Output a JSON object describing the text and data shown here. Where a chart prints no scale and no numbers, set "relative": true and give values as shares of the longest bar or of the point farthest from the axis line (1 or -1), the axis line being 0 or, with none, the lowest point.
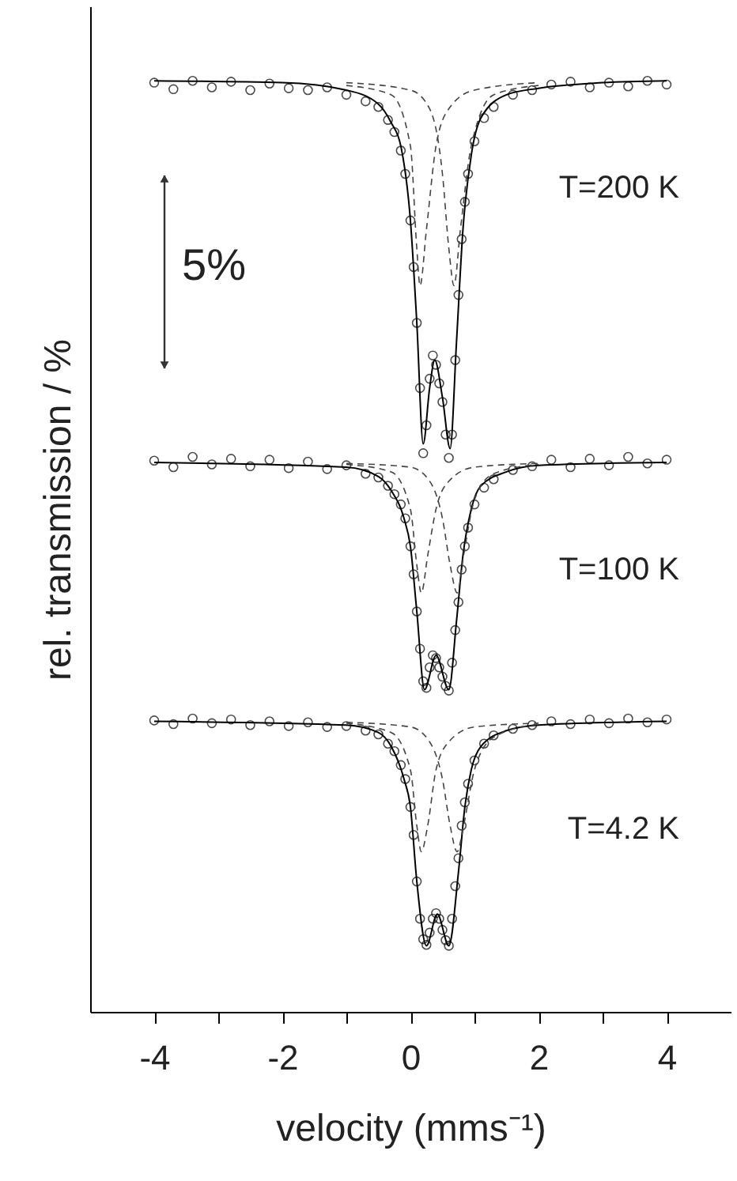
{
  "chart_data": {
    "type": "scatter",
    "relative": true,
    "xlabel": "velocity (mms⁻¹)",
    "ylabel": "rel. transmission / %",
    "xlim": [
      -5,
      5
    ],
    "xticks": [
      -4,
      {
        "value": -3,
        "label": null
      },
      -2,
      {
        "value": -1,
        "label": null
      },
      0,
      {
        "value": 1,
        "label": null
      },
      2,
      {
        "value": 3,
        "label": null
      },
      4
    ],
    "tick_labels": "x",
    "grid": false,
    "annotations": [
      "5%"
    ],
    "series": [
      {
        "marker": "circle",
        "color": "#000000",
        "x": [
          -4,
          -3.7,
          -3.4,
          -3.1,
          -2.8,
          -2.5,
          -2.2,
          -1.9,
          -1.6,
          -1.3,
          -1.0,
          -0.7,
          -0.5,
          -0.35,
          -0.25,
          -0.15,
          -0.08,
          0,
          0.05,
          0.1,
          0.15,
          0.2,
          0.25,
          0.3,
          0.35,
          0.4,
          0.45,
          0.5,
          0.55,
          0.6,
          0.65,
          0.7,
          0.75,
          0.8,
          0.85,
          0.9,
          1.0,
          1.15,
          1.3,
          1.6,
          1.9,
          2.2,
          2.5,
          2.8,
          3.1,
          3.4,
          3.7,
          4
        ],
        "values": [
          0.998,
          0.991,
          1.0,
          0.993,
          0.999,
          0.99,
          0.997,
          0.992,
          0.99,
          0.993,
          0.985,
          0.978,
          0.972,
          0.958,
          0.945,
          0.925,
          0.9,
          0.85,
          0.8,
          0.74,
          0.67,
          0.6,
          0.63,
          0.68,
          0.705,
          0.695,
          0.675,
          0.655,
          0.62,
          0.595,
          0.62,
          0.7,
          0.77,
          0.83,
          0.87,
          0.9,
          0.935,
          0.96,
          0.972,
          0.985,
          0.99,
          0.996,
          0.999,
          0.993,
          0.998,
          0.994,
          1.0,
          0.996
        ]
      },
      {
        "type": "line",
        "name": "T=200 K",
        "marker": "none",
        "line_style": "solid",
        "color": "#000000",
        "x": [
          -4,
          -2,
          -1,
          -0.5,
          -0.3,
          -0.15,
          0,
          0.1,
          0.2,
          0.3,
          0.38,
          0.5,
          0.62,
          0.72,
          0.82,
          0.95,
          1.1,
          1.5,
          2,
          3,
          4
        ],
        "values": [
          1.0,
          0.998,
          0.99,
          0.975,
          0.955,
          0.93,
          0.85,
          0.74,
          0.61,
          0.67,
          0.7,
          0.66,
          0.605,
          0.72,
          0.84,
          0.92,
          0.96,
          0.985,
          0.992,
          0.998,
          1.0
        ]
      },
      {
        "type": "line",
        "marker": "none",
        "line_style": "dashed",
        "color": "#444444",
        "x": [
          -1,
          -0.3,
          0,
          0.1,
          0.15,
          0.25,
          0.4,
          0.6,
          1.0,
          2
        ],
        "values": [
          0.995,
          0.985,
          0.93,
          0.82,
          0.78,
          0.84,
          0.93,
          0.97,
          0.99,
          0.998
        ]
      },
      {
        "type": "line",
        "marker": "none",
        "line_style": "dashed",
        "color": "#444444",
        "x": [
          -1,
          0,
          0.3,
          0.5,
          0.6,
          0.68,
          0.78,
          0.95,
          1.3,
          2
        ],
        "values": [
          0.998,
          0.99,
          0.97,
          0.9,
          0.82,
          0.78,
          0.84,
          0.93,
          0.985,
          0.995
        ]
      },
      {
        "marker": "circle",
        "color": "#000000",
        "x": [
          -4,
          -3.7,
          -3.4,
          -3.1,
          -2.8,
          -2.5,
          -2.2,
          -1.9,
          -1.6,
          -1.3,
          -1.0,
          -0.7,
          -0.5,
          -0.35,
          -0.25,
          -0.15,
          -0.08,
          0,
          0.05,
          0.1,
          0.15,
          0.2,
          0.25,
          0.3,
          0.35,
          0.4,
          0.45,
          0.5,
          0.55,
          0.6,
          0.65,
          0.7,
          0.75,
          0.8,
          0.85,
          0.9,
          1.0,
          1.15,
          1.3,
          1.6,
          1.9,
          2.2,
          2.5,
          2.8,
          3.1,
          3.4,
          3.7,
          4
        ],
        "values": [
          0.592,
          0.585,
          0.596,
          0.588,
          0.594,
          0.586,
          0.593,
          0.584,
          0.591,
          0.583,
          0.587,
          0.578,
          0.574,
          0.565,
          0.556,
          0.545,
          0.53,
          0.5,
          0.47,
          0.43,
          0.39,
          0.355,
          0.348,
          0.37,
          0.383,
          0.38,
          0.37,
          0.36,
          0.35,
          0.345,
          0.375,
          0.41,
          0.44,
          0.475,
          0.5,
          0.52,
          0.545,
          0.563,
          0.572,
          0.582,
          0.586,
          0.593,
          0.585,
          0.594,
          0.587,
          0.596,
          0.589,
          0.593
        ]
      },
      {
        "type": "line",
        "name": "T=100 K",
        "marker": "none",
        "line_style": "solid",
        "color": "#000000",
        "x": [
          -4,
          -1,
          -0.5,
          -0.3,
          -0.1,
          0,
          0.1,
          0.22,
          0.4,
          0.6,
          0.72,
          0.82,
          0.95,
          1.1,
          1.5,
          2,
          4
        ],
        "values": [
          0.59,
          0.585,
          0.575,
          0.56,
          0.53,
          0.5,
          0.43,
          0.346,
          0.383,
          0.346,
          0.42,
          0.49,
          0.54,
          0.565,
          0.58,
          0.587,
          0.59
        ]
      },
      {
        "type": "line",
        "marker": "none",
        "line_style": "dashed",
        "color": "#444444",
        "x": [
          -1,
          -0.3,
          0,
          0.1,
          0.17,
          0.27,
          0.4,
          0.6,
          1.0,
          2
        ],
        "values": [
          0.588,
          0.58,
          0.54,
          0.48,
          0.45,
          0.49,
          0.54,
          0.57,
          0.585,
          0.589
        ]
      },
      {
        "type": "line",
        "marker": "none",
        "line_style": "dashed",
        "color": "#444444",
        "x": [
          -1,
          0,
          0.3,
          0.5,
          0.62,
          0.73,
          0.83,
          1.0,
          1.3,
          2
        ],
        "values": [
          0.589,
          0.585,
          0.57,
          0.53,
          0.48,
          0.45,
          0.49,
          0.55,
          0.578,
          0.588
        ]
      },
      {
        "marker": "circle",
        "color": "#000000",
        "x": [
          -4,
          -3.7,
          -3.4,
          -3.1,
          -2.8,
          -2.5,
          -2.2,
          -1.9,
          -1.6,
          -1.3,
          -1.0,
          -0.7,
          -0.5,
          -0.35,
          -0.25,
          -0.15,
          -0.08,
          0,
          0.05,
          0.1,
          0.15,
          0.2,
          0.25,
          0.3,
          0.35,
          0.4,
          0.45,
          0.5,
          0.55,
          0.6,
          0.65,
          0.7,
          0.75,
          0.8,
          0.85,
          0.9,
          1.0,
          1.15,
          1.3,
          1.6,
          1.9,
          2.2,
          2.5,
          2.8,
          3.1,
          3.4,
          3.7,
          4
        ],
        "values": [
          0.313,
          0.309,
          0.315,
          0.31,
          0.314,
          0.308,
          0.312,
          0.307,
          0.311,
          0.306,
          0.307,
          0.302,
          0.298,
          0.288,
          0.28,
          0.265,
          0.25,
          0.22,
          0.19,
          0.14,
          0.1,
          0.078,
          0.072,
          0.085,
          0.1,
          0.106,
          0.1,
          0.088,
          0.077,
          0.071,
          0.1,
          0.135,
          0.165,
          0.2,
          0.225,
          0.245,
          0.27,
          0.288,
          0.297,
          0.304,
          0.308,
          0.312,
          0.309,
          0.314,
          0.31,
          0.315,
          0.311,
          0.314
        ]
      },
      {
        "type": "line",
        "name": "T=4.2 K",
        "marker": "none",
        "line_style": "solid",
        "color": "#000000",
        "x": [
          -4,
          -1,
          -0.5,
          -0.3,
          -0.1,
          0,
          0.1,
          0.25,
          0.42,
          0.6,
          0.75,
          0.85,
          0.95,
          1.1,
          1.5,
          2,
          4
        ],
        "values": [
          0.312,
          0.308,
          0.3,
          0.285,
          0.25,
          0.22,
          0.14,
          0.071,
          0.105,
          0.071,
          0.15,
          0.22,
          0.26,
          0.285,
          0.302,
          0.308,
          0.312
        ]
      },
      {
        "type": "line",
        "marker": "none",
        "line_style": "dashed",
        "color": "#444444",
        "x": [
          -1,
          -0.3,
          0,
          0.1,
          0.17,
          0.27,
          0.4,
          0.6,
          1.0,
          2
        ],
        "values": [
          0.31,
          0.3,
          0.26,
          0.2,
          0.172,
          0.2,
          0.26,
          0.29,
          0.306,
          0.31
        ]
      },
      {
        "type": "line",
        "marker": "none",
        "line_style": "dashed",
        "color": "#444444",
        "x": [
          -1,
          0,
          0.3,
          0.5,
          0.62,
          0.73,
          0.83,
          1.0,
          1.3,
          2
        ],
        "values": [
          0.311,
          0.306,
          0.29,
          0.25,
          0.2,
          0.172,
          0.2,
          0.26,
          0.295,
          0.309
        ]
      }
    ]
  }
}
